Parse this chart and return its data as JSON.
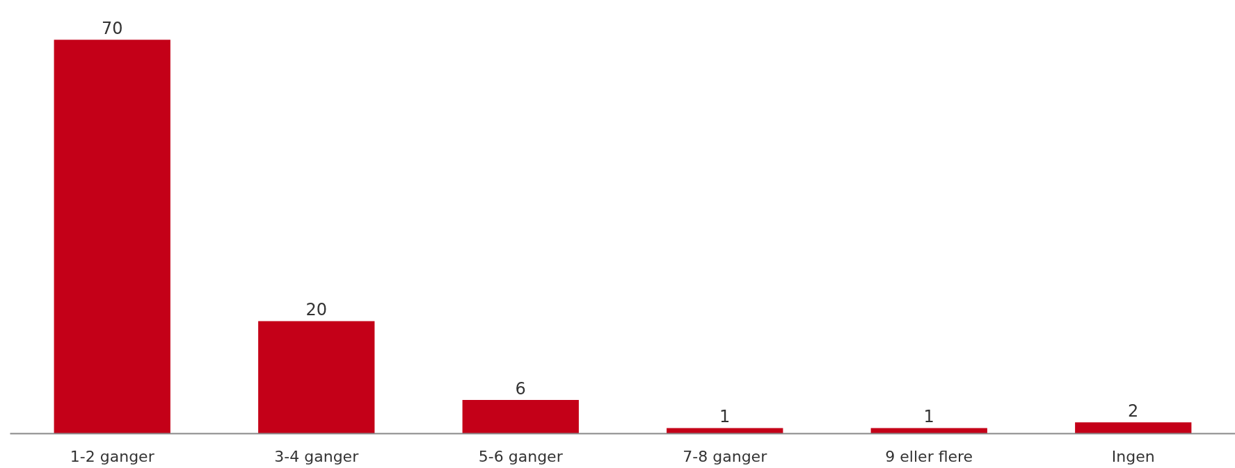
{
  "chart_data": {
    "type": "bar",
    "categories": [
      "1-2 ganger",
      "3-4 ganger",
      "5-6 ganger",
      "7-8 ganger",
      "9 eller flere",
      "Ingen"
    ],
    "values": [
      70,
      20,
      6,
      1,
      1,
      2
    ],
    "color": "#c40018",
    "data_labels": true
  }
}
